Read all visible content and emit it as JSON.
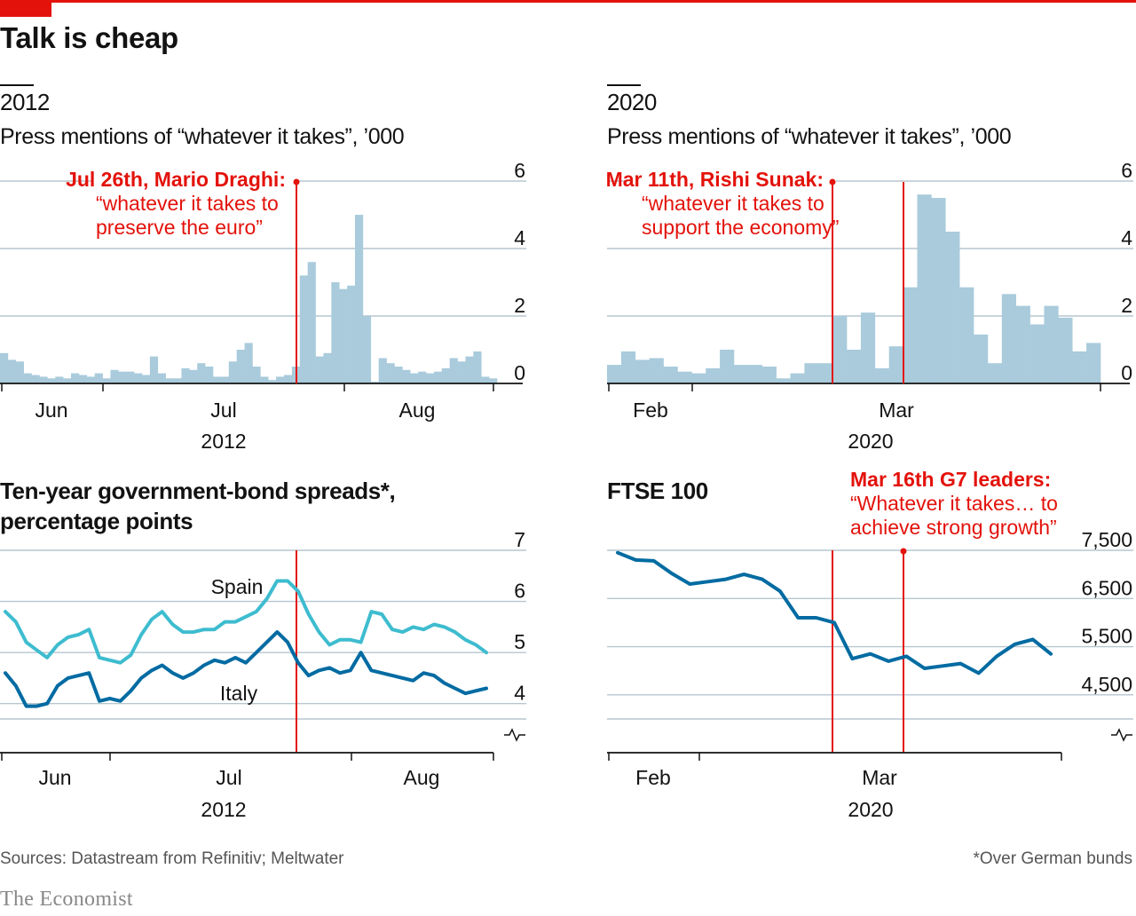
{
  "title": "Talk is cheap",
  "panels": {
    "p1": {
      "year_label": "2012",
      "subtitle": "Press mentions of “whatever it takes”, ’000"
    },
    "p2": {
      "year_label": "2020",
      "subtitle": "Press mentions of “whatever it takes”, ’000"
    },
    "p3": {
      "title_line1": "Ten-year government-bond spreads*,",
      "title_line2": "percentage points"
    },
    "p4": {
      "title": "FTSE 100"
    }
  },
  "colors": {
    "red": "#e3120b",
    "bar": "#a9cbdc",
    "spain": "#3ebccf",
    "italy": "#006ba2",
    "grid": "#b7c6cf"
  },
  "chart_data": [
    {
      "id": "mentions-2012",
      "type": "bar",
      "xaxis_ticks": [
        "Jun",
        "Jul",
        "Aug"
      ],
      "xaxis_year": "2012",
      "yticks": [
        "0",
        "2",
        "4",
        "6"
      ],
      "ylim": [
        0,
        6
      ],
      "values": [
        0.9,
        0.7,
        0.65,
        0.3,
        0.25,
        0.2,
        0.15,
        0.2,
        0.15,
        0.3,
        0.25,
        0.2,
        0.3,
        0.15,
        0.4,
        0.35,
        0.35,
        0.3,
        0.25,
        0.8,
        0.3,
        0.15,
        0.15,
        0.45,
        0.4,
        0.6,
        0.5,
        0.2,
        0.2,
        0.65,
        1.0,
        1.2,
        0.5,
        0.2,
        0.1,
        0.2,
        0.25,
        0.5,
        3.2,
        3.6,
        0.8,
        0.9,
        3.0,
        2.8,
        2.9,
        5.0,
        2.0,
        0.05,
        0.75,
        0.6,
        0.5,
        0.4,
        0.3,
        0.35,
        0.3,
        0.35,
        0.45,
        0.75,
        0.65,
        0.8,
        0.95,
        0.2,
        0.15
      ],
      "annotation": {
        "date": "Jul 26th, Mario Draghi:",
        "quote_line1": "“whatever it takes to",
        "quote_line2": "preserve the euro”"
      }
    },
    {
      "id": "mentions-2020",
      "type": "bar",
      "xaxis_ticks": [
        "Feb",
        "Mar"
      ],
      "xaxis_year": "2020",
      "yticks": [
        "0",
        "2",
        "4",
        "6"
      ],
      "ylim": [
        0,
        6
      ],
      "values": [
        0.55,
        0.95,
        0.7,
        0.75,
        0.5,
        0.35,
        0.3,
        0.45,
        1.0,
        0.55,
        0.55,
        0.5,
        0.15,
        0.3,
        0.6,
        0.6,
        2.0,
        1.0,
        2.1,
        0.45,
        1.1,
        2.85,
        5.6,
        5.5,
        4.5,
        2.85,
        1.45,
        0.6,
        2.65,
        2.3,
        1.75,
        2.3,
        1.95,
        0.95,
        1.2
      ],
      "annotation": {
        "date": "Mar 11th, Rishi Sunak:",
        "quote_line1": "“whatever it takes to",
        "quote_line2": "support the economy”"
      }
    },
    {
      "id": "spreads-2012",
      "type": "line",
      "xaxis_ticks": [
        "Jun",
        "Jul",
        "Aug"
      ],
      "xaxis_year": "2012",
      "yticks": [
        "4",
        "5",
        "6",
        "7"
      ],
      "ylim": [
        3.7,
        7
      ],
      "series": [
        {
          "name": "Spain",
          "values": [
            5.8,
            5.6,
            5.2,
            5.05,
            4.9,
            5.15,
            5.3,
            5.35,
            5.45,
            4.9,
            4.85,
            4.8,
            4.95,
            5.35,
            5.65,
            5.8,
            5.55,
            5.4,
            5.4,
            5.45,
            5.45,
            5.6,
            5.6,
            5.7,
            5.8,
            6.05,
            6.4,
            6.4,
            6.2,
            5.75,
            5.4,
            5.15,
            5.25,
            5.25,
            5.2,
            5.8,
            5.75,
            5.45,
            5.4,
            5.5,
            5.45,
            5.55,
            5.5,
            5.4,
            5.25,
            5.15,
            5.0
          ]
        },
        {
          "name": "Italy",
          "values": [
            4.6,
            4.35,
            3.95,
            3.95,
            4.0,
            4.35,
            4.5,
            4.55,
            4.6,
            4.05,
            4.1,
            4.05,
            4.25,
            4.5,
            4.65,
            4.75,
            4.6,
            4.5,
            4.6,
            4.75,
            4.85,
            4.8,
            4.9,
            4.8,
            5.0,
            5.2,
            5.4,
            5.2,
            4.8,
            4.55,
            4.65,
            4.7,
            4.6,
            4.65,
            5.0,
            4.65,
            4.6,
            4.55,
            4.5,
            4.45,
            4.6,
            4.55,
            4.4,
            4.3,
            4.2,
            4.25,
            4.3
          ]
        }
      ]
    },
    {
      "id": "ftse-2020",
      "type": "line",
      "xaxis_ticks": [
        "Feb",
        "Mar"
      ],
      "xaxis_year": "2020",
      "yticks": [
        "4,500",
        "5,500",
        "6,500",
        "7,500"
      ],
      "ylim": [
        4000,
        7500
      ],
      "series": [
        {
          "name": "FTSE 100",
          "values": [
            7450,
            7300,
            7280,
            7020,
            6800,
            6850,
            6900,
            7000,
            6900,
            6650,
            6100,
            6100,
            6000,
            5250,
            5350,
            5200,
            5300,
            5050,
            5100,
            5150,
            4950,
            5300,
            5550,
            5650,
            5350
          ]
        }
      ],
      "annotation": {
        "date": "Mar 16th G7 leaders:",
        "quote_line1": "“Whatever it takes… to",
        "quote_line2": "achieve strong growth”"
      }
    }
  ],
  "footer": {
    "sources": "Sources: Datastream from Refinitiv; Meltwater",
    "footnote": "*Over German bunds",
    "brand": "The Economist"
  }
}
